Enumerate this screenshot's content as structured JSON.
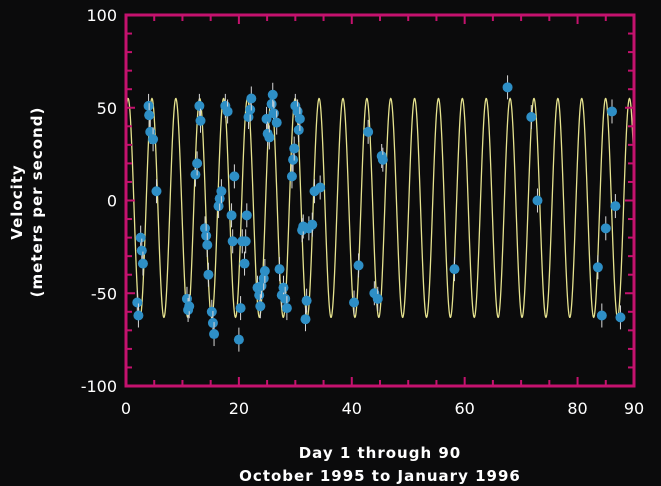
{
  "chart_data": {
    "type": "scatter",
    "title": "",
    "xlabel_line1": "Day 1 through 90",
    "xlabel_line2": "October 1995 to January 1996",
    "ylabel_line1": "Velocity",
    "ylabel_line2": "(meters per second)",
    "xlim": [
      0,
      90
    ],
    "ylim": [
      -100,
      100
    ],
    "xticks": [
      0,
      20,
      40,
      60,
      80,
      90
    ],
    "yticks": [
      100,
      50,
      0,
      -50,
      -100
    ],
    "grid": false,
    "colors": {
      "frame": "#c4126e",
      "background": "#0b0b0c",
      "curve": "#e6e38e",
      "points": "#2e8fc6",
      "error_bars": "#d8d8d8",
      "text": "#ffffff"
    },
    "series": [
      {
        "kind": "model-curve",
        "function": "sinusoid",
        "amplitude": 59,
        "offset": -4,
        "period_days": 4.23,
        "phase_day": 4.6
      },
      {
        "kind": "observations",
        "points": [
          [
            2.0,
            -55
          ],
          [
            2.2,
            -62
          ],
          [
            2.6,
            -20
          ],
          [
            2.8,
            -27
          ],
          [
            3.0,
            -34
          ],
          [
            4.0,
            51
          ],
          [
            4.1,
            46
          ],
          [
            4.3,
            37
          ],
          [
            4.8,
            33
          ],
          [
            5.4,
            5
          ],
          [
            10.8,
            -53
          ],
          [
            11.0,
            -59
          ],
          [
            11.2,
            -57
          ],
          [
            12.3,
            14
          ],
          [
            12.6,
            20
          ],
          [
            13.0,
            51
          ],
          [
            13.2,
            43
          ],
          [
            14.0,
            -15
          ],
          [
            14.2,
            -19
          ],
          [
            14.4,
            -24
          ],
          [
            14.6,
            -40
          ],
          [
            15.2,
            -60
          ],
          [
            15.4,
            -66
          ],
          [
            15.6,
            -72
          ],
          [
            16.4,
            -3
          ],
          [
            16.6,
            1
          ],
          [
            16.9,
            5
          ],
          [
            17.6,
            51
          ],
          [
            18.0,
            48
          ],
          [
            18.7,
            -8
          ],
          [
            18.9,
            -22
          ],
          [
            19.2,
            13
          ],
          [
            20.0,
            -75
          ],
          [
            20.3,
            -58
          ],
          [
            20.6,
            -22
          ],
          [
            21.0,
            -34
          ],
          [
            21.2,
            -22
          ],
          [
            21.4,
            -8
          ],
          [
            21.7,
            45
          ],
          [
            22.0,
            49
          ],
          [
            22.2,
            55
          ],
          [
            23.3,
            -47
          ],
          [
            23.6,
            -51
          ],
          [
            23.8,
            -57
          ],
          [
            24.0,
            -46
          ],
          [
            24.4,
            -42
          ],
          [
            24.6,
            -38
          ],
          [
            24.9,
            44
          ],
          [
            25.1,
            36
          ],
          [
            25.4,
            34
          ],
          [
            25.8,
            52
          ],
          [
            26.0,
            57
          ],
          [
            26.2,
            47
          ],
          [
            26.7,
            42
          ],
          [
            27.2,
            -37
          ],
          [
            27.6,
            -51
          ],
          [
            27.9,
            -47
          ],
          [
            28.2,
            -53
          ],
          [
            28.5,
            -58
          ],
          [
            29.4,
            13
          ],
          [
            29.6,
            22
          ],
          [
            29.8,
            28
          ],
          [
            30.0,
            51
          ],
          [
            30.4,
            48
          ],
          [
            30.6,
            38
          ],
          [
            30.8,
            44
          ],
          [
            31.2,
            -16
          ],
          [
            31.4,
            -14
          ],
          [
            31.8,
            -64
          ],
          [
            32.0,
            -54
          ],
          [
            32.4,
            -15
          ],
          [
            33.0,
            -13
          ],
          [
            33.4,
            5
          ],
          [
            34.4,
            7
          ],
          [
            40.4,
            -55
          ],
          [
            41.2,
            -35
          ],
          [
            42.9,
            37
          ],
          [
            44.0,
            -50
          ],
          [
            44.6,
            -53
          ],
          [
            45.3,
            24
          ],
          [
            45.5,
            22
          ],
          [
            58.2,
            -37
          ],
          [
            67.6,
            61
          ],
          [
            71.8,
            45
          ],
          [
            72.9,
            0
          ],
          [
            83.6,
            -36
          ],
          [
            84.3,
            -62
          ],
          [
            85.0,
            -15
          ],
          [
            86.1,
            48
          ],
          [
            86.7,
            -3
          ],
          [
            87.6,
            -63
          ]
        ]
      }
    ]
  }
}
